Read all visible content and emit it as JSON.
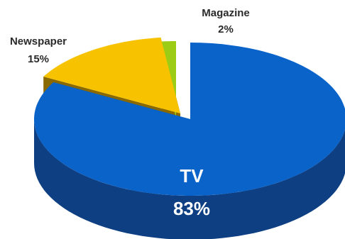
{
  "chart_data": {
    "type": "pie",
    "style": "3d-exploded",
    "categories": [
      "TV",
      "Newspaper",
      "Magazine"
    ],
    "values": [
      83,
      15,
      2
    ],
    "value_labels": [
      "83%",
      "15%",
      "2%"
    ],
    "colors": [
      "#0a63c9",
      "#f7c300",
      "#9ccc16"
    ],
    "side_colors": [
      "#0d3f82",
      "#8a6a00",
      "#4d6a0a"
    ],
    "legend": "none",
    "title": ""
  }
}
